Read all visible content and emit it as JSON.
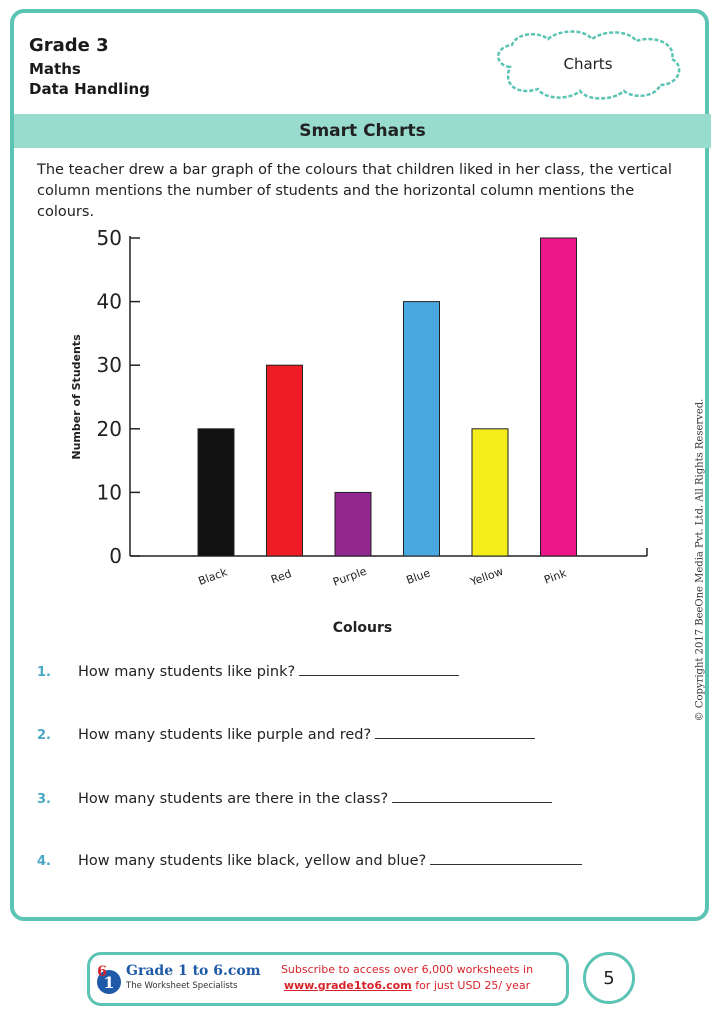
{
  "header": {
    "grade": "Grade 3",
    "subject": "Maths",
    "topic": "Data Handling",
    "badge": "Charts"
  },
  "banner_title": "Smart Charts",
  "intro": "The teacher drew a bar graph of the colours that children liked in her class, the vertical column mentions the number of students  and the horizontal column mentions the colours.",
  "chart_data": {
    "type": "bar",
    "categories": [
      "Black",
      "Red",
      "Purple",
      "Blue",
      "Yellow",
      "Pink"
    ],
    "values": [
      20,
      30,
      10,
      40,
      20,
      50
    ],
    "colors": [
      "#111111",
      "#ee1c25",
      "#92278f",
      "#4aa8e0",
      "#f5ec1c",
      "#ec1889"
    ],
    "xlabel": "Colours",
    "ylabel": "Number of Students",
    "yticks": [
      0,
      10,
      20,
      30,
      40,
      50
    ],
    "ylim": [
      0,
      50
    ],
    "grid": false
  },
  "questions": [
    {
      "num": "1.",
      "text": "How many students like pink?"
    },
    {
      "num": "2.",
      "text": "How many students like purple and red?"
    },
    {
      "num": "3.",
      "text": "How many students are there in the class?"
    },
    {
      "num": "4.",
      "text": "How many students like black, yellow and blue?"
    }
  ],
  "copyright": "© Copyright 2017 BeeOne Media Pvt. Ltd. All Rights Reserved.",
  "footer": {
    "brand": "Grade 1 to 6.com",
    "tagline": "The Worksheet Specialists",
    "subscribe_line1": "Subscribe to access over 6,000 worksheets in",
    "subscribe_link": "www.grade1to6.com",
    "subscribe_line2": " for just USD 25/ year",
    "page_number": "5"
  }
}
